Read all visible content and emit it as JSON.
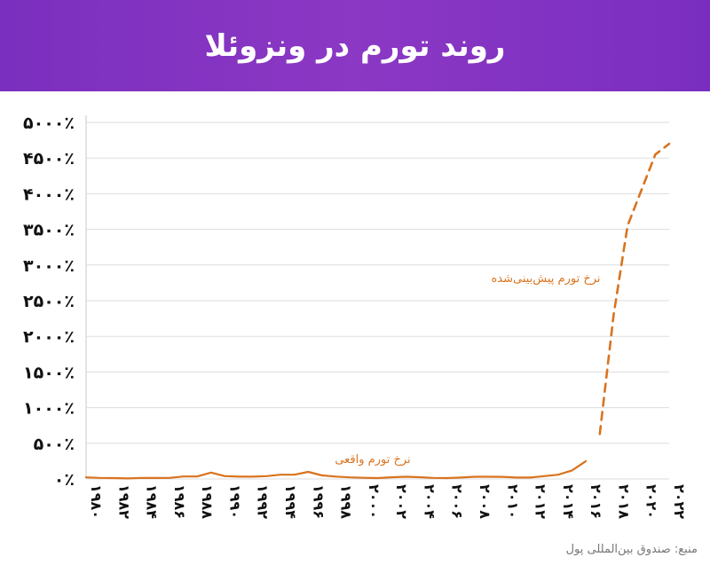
{
  "header": {
    "title": "روند تورم در ونزوئلا"
  },
  "source": "منبع: صندوق بین‌المللی پول",
  "colors": {
    "header_bg": "#8b38c4",
    "series": "#d9731f",
    "grid": "#dddddd"
  },
  "chart_data": {
    "type": "line",
    "title": "",
    "xlabel": "",
    "ylabel": "",
    "ylim": [
      0,
      5000
    ],
    "xlim": [
      1980,
      2022
    ],
    "grid": true,
    "y_ticks": [
      "۰٪",
      "۵۰۰٪",
      "۱۰۰۰٪",
      "۱۵۰۰٪",
      "۲۰۰۰٪",
      "۲۵۰۰٪",
      "۳۰۰۰٪",
      "۳۵۰۰٪",
      "۴۰۰۰٪",
      "۴۵۰۰٪",
      "۵۰۰۰٪"
    ],
    "y_tick_values": [
      0,
      500,
      1000,
      1500,
      2000,
      2500,
      3000,
      3500,
      4000,
      4500,
      5000
    ],
    "x_ticks": [
      "۱۹۸۰",
      "۱۹۸۲",
      "۱۹۸۴",
      "۱۹۸۶",
      "۱۹۸۸",
      "۱۹۹۰",
      "۱۹۹۲",
      "۱۹۹۴",
      "۱۹۹۶",
      "۱۹۹۸",
      "۲۰۰۰",
      "۲۰۰۲",
      "۲۰۰۴",
      "۲۰۰۶",
      "۲۰۰۸",
      "۲۰۱۰",
      "۲۰۱۲",
      "۲۰۱۴",
      "۲۰۱۶",
      "۲۰۱۸",
      "۲۰۲۰",
      "۲۰۲۲"
    ],
    "x_tick_values": [
      1980,
      1982,
      1984,
      1986,
      1988,
      1990,
      1992,
      1994,
      1996,
      1998,
      2000,
      2002,
      2004,
      2006,
      2008,
      2010,
      2012,
      2014,
      2016,
      2018,
      2020,
      2022
    ],
    "series": [
      {
        "name": "نرخ تورم واقعی",
        "style": "solid",
        "x": [
          1980,
          1981,
          1982,
          1983,
          1984,
          1985,
          1986,
          1987,
          1988,
          1989,
          1990,
          1991,
          1992,
          1993,
          1994,
          1995,
          1996,
          1997,
          1998,
          1999,
          2000,
          2001,
          2002,
          2003,
          2004,
          2005,
          2006,
          2007,
          2008,
          2009,
          2010,
          2011,
          2012,
          2013,
          2014,
          2015,
          2016
        ],
        "values": [
          22,
          15,
          12,
          8,
          15,
          14,
          15,
          35,
          35,
          90,
          40,
          32,
          32,
          40,
          60,
          60,
          100,
          50,
          33,
          23,
          16,
          13,
          24,
          31,
          25,
          15,
          13,
          20,
          31,
          31,
          30,
          20,
          20,
          40,
          60,
          120,
          250
        ]
      },
      {
        "name": "نرخ تورم پیش‌بینی‌شده",
        "style": "dashed",
        "x": [
          2017,
          2018,
          2019,
          2020,
          2021,
          2022
        ],
        "values": [
          630,
          2300,
          3550,
          4050,
          4550,
          4700
        ]
      }
    ]
  }
}
